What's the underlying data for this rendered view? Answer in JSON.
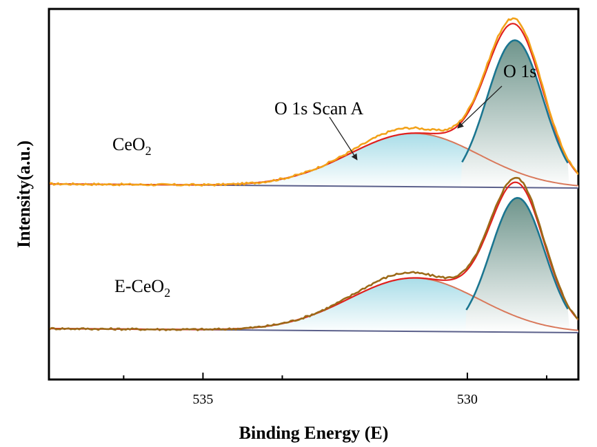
{
  "chart_data": {
    "type": "line",
    "title": "",
    "xlabel": "Binding Energy (E)",
    "ylabel": "Intensity(a.u.)",
    "xlim": [
      537.9,
      527.9
    ],
    "x_reversed": true,
    "x_major_ticks": [
      535,
      530
    ],
    "x_minor_ticks": [
      536.5,
      533.5,
      528.5
    ],
    "tick_labels": [
      "535",
      "530"
    ],
    "y_ticks_labeled": false,
    "annotations": {
      "scan_label": "O 1s Scan A",
      "peak_label": "O 1s"
    },
    "samples": [
      {
        "name": "CeO",
        "sub": "2",
        "raw_color": "#F2A21A",
        "envelope_color": "#E0201E",
        "baseline_level": 0.0,
        "peaks": [
          {
            "name": "O 1s Scan A",
            "center": 531.0,
            "fwhm": 2.9,
            "height": 0.33,
            "color": "#D9785A",
            "fill": "#A9DDE8"
          },
          {
            "name": "O 1s",
            "center": 529.1,
            "fwhm": 1.25,
            "height": 0.91,
            "color": "#1A7590",
            "fill": "#7FA39A"
          }
        ]
      },
      {
        "name": "E-CeO",
        "sub": "2",
        "raw_color": "#9C6A18",
        "envelope_color": "#E0201E",
        "baseline_level": 0.0,
        "peaks": [
          {
            "name": "O 1s Scan A",
            "center": 531.0,
            "fwhm": 2.9,
            "height": 0.33,
            "color": "#D9785A",
            "fill": "#A9DDE8"
          },
          {
            "name": "O 1s",
            "center": 529.05,
            "fwhm": 1.2,
            "height": 0.83,
            "color": "#1A7590",
            "fill": "#7FA39A"
          }
        ]
      }
    ]
  }
}
